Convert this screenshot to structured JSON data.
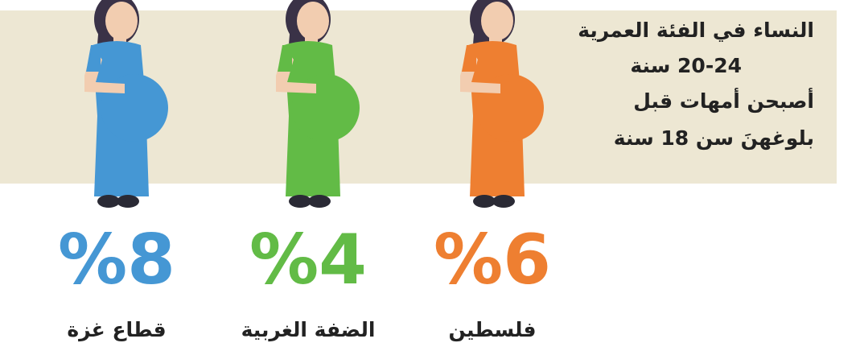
{
  "header": {
    "lines": [
      "النساء في الفئة العمرية",
      "20-24 سنة",
      "أصبحن أمهات قبل",
      "بلوغهنَ سن 18 سنة"
    ]
  },
  "items": [
    {
      "region": "فلسطين",
      "value_label": "%6",
      "color": "#ee7f31"
    },
    {
      "region": "الضفة الغربية",
      "value_label": "%4",
      "color": "#62bb46"
    },
    {
      "region": "قطاع غزة",
      "value_label": "%8",
      "color": "#4597d4"
    }
  ]
}
